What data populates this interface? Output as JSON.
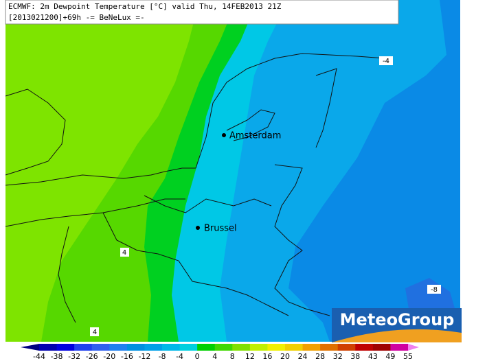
{
  "header": {
    "line1": "ECMWF: 2m Dewpoint Temperature [°C] valid Thu, 14FEB2013 21Z",
    "line2": "[2013021200]+69h  -= BeNeLux =-"
  },
  "cities": [
    "Amsterdam",
    "Brussel"
  ],
  "contour_labels": [
    "-4",
    "4",
    "4",
    "-8"
  ],
  "logo": "MeteoGroup",
  "colorbar": {
    "ticks": [
      -44,
      -38,
      -32,
      -26,
      -20,
      -16,
      -12,
      -8,
      -4,
      0,
      4,
      8,
      12,
      16,
      20,
      24,
      28,
      32,
      38,
      43,
      49,
      55
    ],
    "colors": [
      "#000080",
      "#0000b0",
      "#0000e0",
      "#2040f0",
      "#3060f0",
      "#2080f0",
      "#0090e0",
      "#00a0e8",
      "#00b8e8",
      "#00d0e0",
      "#00d000",
      "#40d800",
      "#80e000",
      "#c0f000",
      "#f0f000",
      "#f0d000",
      "#f0a000",
      "#e07000",
      "#d04000",
      "#c00000",
      "#a00000",
      "#d000a0",
      "#f080f0"
    ]
  }
}
